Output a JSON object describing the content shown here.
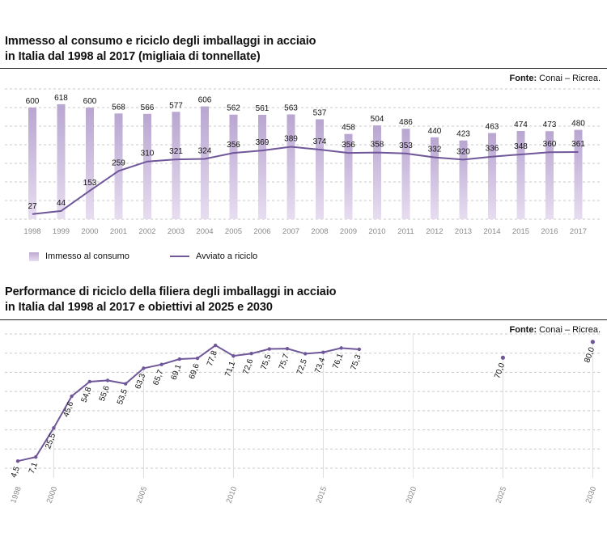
{
  "colors": {
    "line": "#6f579a",
    "bar_top": "#b9a6d1",
    "bar_bottom": "#e7ddf0",
    "grid": "#c8c8c8",
    "axis_text": "#8a8a8a"
  },
  "chart1": {
    "title_line1": "Immesso al consumo e riciclo degli imballaggi in acciaio",
    "title_line2": "in Italia dal 1998 al 2017 (migliaia di tonnellate)",
    "source_label": "Fonte:",
    "source_text": " Conai – Ricrea.",
    "legend": {
      "bars": "Immesso al consumo",
      "line": "Avviato a riciclo"
    }
  },
  "chart2": {
    "title_line1": "Performance di riciclo della filiera degli imballaggi in acciaio",
    "title_line2": "in Italia dal 1998 al 2017 e obiettivi al 2025 e 2030",
    "source_label": "Fonte:",
    "source_text": " Conai – Ricrea."
  },
  "chart_data": [
    {
      "type": "bar",
      "title": "Immesso al consumo e riciclo degli imballaggi in acciaio in Italia dal 1998 al 2017 (migliaia di tonnellate)",
      "categories": [
        "1998",
        "1999",
        "2000",
        "2001",
        "2002",
        "2003",
        "2004",
        "2005",
        "2006",
        "2007",
        "2008",
        "2009",
        "2010",
        "2011",
        "2012",
        "2013",
        "2014",
        "2015",
        "2016",
        "2017"
      ],
      "series": [
        {
          "name": "Immesso al consumo",
          "type": "bar",
          "values": [
            600,
            618,
            600,
            568,
            566,
            577,
            606,
            562,
            561,
            563,
            537,
            458,
            504,
            486,
            440,
            423,
            463,
            474,
            473,
            480
          ],
          "labels": [
            "600",
            "618",
            "600",
            "568",
            "566",
            "577",
            "606",
            "562",
            "561",
            "563",
            "537",
            "458",
            "504",
            "486",
            "440",
            "423",
            "463",
            "474",
            "473",
            "480"
          ]
        },
        {
          "name": "Avviato a riciclo",
          "type": "line",
          "values": [
            27,
            44,
            153,
            259,
            310,
            321,
            324,
            356,
            369,
            389,
            374,
            356,
            358,
            353,
            332,
            320,
            336,
            348,
            360,
            361
          ],
          "labels": [
            "27",
            "44",
            "153",
            "259",
            "310",
            "321",
            "324",
            "356",
            "369",
            "389",
            "374",
            "356",
            "358",
            "353",
            "332",
            "320",
            "336",
            "348",
            "360",
            "361"
          ]
        }
      ],
      "ylim": [
        0,
        700
      ],
      "legend_position": "bottom-left",
      "grid": true
    },
    {
      "type": "line",
      "title": "Performance di riciclo della filiera degli imballaggi in acciaio in Italia dal 1998 al 2017 e obiettivi al 2025 e 2030",
      "series": [
        {
          "name": "",
          "x": [
            1998,
            1999,
            2000,
            2001,
            2002,
            2003,
            2004,
            2005,
            2006,
            2007,
            2008,
            2009,
            2010,
            2011,
            2012,
            2013,
            2014,
            2015,
            2016,
            2017
          ],
          "values": [
            4.5,
            7.1,
            25.5,
            45.6,
            54.8,
            55.6,
            53.5,
            63.3,
            65.7,
            69.1,
            69.6,
            77.8,
            71.1,
            72.6,
            75.5,
            75.7,
            72.5,
            73.4,
            76.1,
            75.3
          ],
          "labels": [
            "4,5",
            "7,1",
            "25,5",
            "45,6",
            "54,8",
            "55,6",
            "53,5",
            "63,3",
            "65,7",
            "69,1",
            "69,6",
            "77,8",
            "71,1",
            "72,6",
            "75,5",
            "75,7",
            "72,5",
            "73,4",
            "76,1",
            "75,3"
          ]
        },
        {
          "name": "",
          "x": [
            2025,
            2030
          ],
          "values": [
            70.0,
            80.0
          ],
          "labels": [
            "70,0",
            "80,0"
          ]
        }
      ],
      "x_ticks": [
        "1998",
        "2000",
        "2005",
        "2010",
        "2015",
        "2020",
        "2025",
        "2030"
      ],
      "ylim": [
        0,
        85
      ],
      "grid": true
    }
  ]
}
